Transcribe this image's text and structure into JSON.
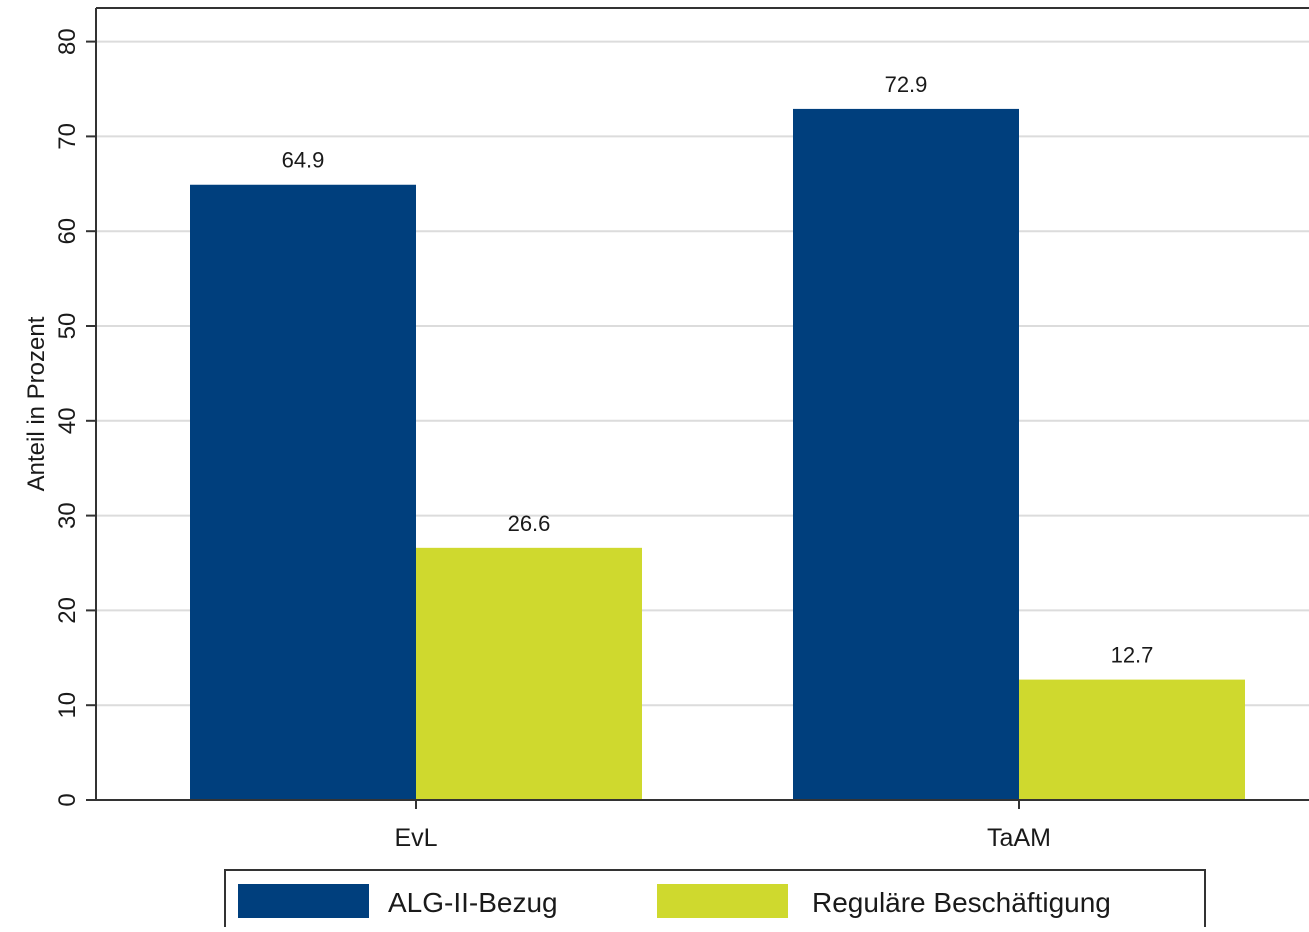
{
  "chart_data": {
    "type": "bar",
    "categories": [
      "EvL",
      "TaAM"
    ],
    "series": [
      {
        "name": "ALG-II-Bezug",
        "values": [
          64.9,
          72.9
        ],
        "color": "#003f7d"
      },
      {
        "name": "Reguläre Beschäftigung",
        "values": [
          26.6,
          12.7
        ],
        "color": "#cfd92e"
      }
    ],
    "data_labels": [
      [
        "64.9",
        "72.9"
      ],
      [
        "26.6",
        "12.7"
      ]
    ],
    "xlabel": "",
    "ylabel": "Anteil in Prozent",
    "ylim": [
      0,
      80
    ],
    "yticks": [
      "0",
      "10",
      "20",
      "30",
      "40",
      "50",
      "60",
      "70",
      "80"
    ],
    "grid": true,
    "legend_position": "bottom"
  }
}
